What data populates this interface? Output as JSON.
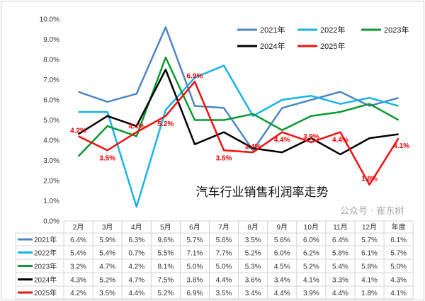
{
  "chart_data": {
    "type": "line",
    "title": "汽车行业销售利润率走势",
    "categories": [
      "2月",
      "3月",
      "4月",
      "5月",
      "6月",
      "7月",
      "8月",
      "9月",
      "10月",
      "11月",
      "12月",
      "年度"
    ],
    "ylim": [
      0,
      10
    ],
    "yticks": [
      "0.0%",
      "1.0%",
      "2.0%",
      "3.0%",
      "4.0%",
      "5.0%",
      "6.0%",
      "7.0%",
      "8.0%",
      "9.0%",
      "10.0%"
    ],
    "grid": false,
    "legend": "top-right",
    "series": [
      {
        "name": "2021年",
        "color": "#4e86c2",
        "values": [
          6.4,
          5.9,
          6.3,
          9.6,
          5.7,
          5.6,
          3.5,
          5.6,
          6.0,
          6.4,
          5.7,
          6.1
        ]
      },
      {
        "name": "2022年",
        "color": "#16b4ea",
        "values": [
          5.4,
          5.4,
          0.7,
          5.5,
          7.1,
          7.7,
          5.2,
          6.0,
          6.2,
          5.8,
          6.1,
          5.7
        ]
      },
      {
        "name": "2023年",
        "color": "#0a9a30",
        "values": [
          3.2,
          4.7,
          4.2,
          8.1,
          5.0,
          5.0,
          5.3,
          4.5,
          5.2,
          5.4,
          5.8,
          5.0
        ]
      },
      {
        "name": "2024年",
        "color": "#000000",
        "values": [
          4.3,
          5.2,
          4.7,
          7.5,
          3.8,
          4.4,
          3.6,
          3.4,
          4.1,
          3.3,
          4.1,
          4.3
        ]
      },
      {
        "name": "2025年",
        "color": "#ee1111",
        "values": [
          4.2,
          3.5,
          4.4,
          5.2,
          6.9,
          3.5,
          3.4,
          4.4,
          3.9,
          4.4,
          1.8,
          4.1
        ],
        "data_labels": true
      }
    ]
  },
  "watermark": "公众号 · 崔东树"
}
